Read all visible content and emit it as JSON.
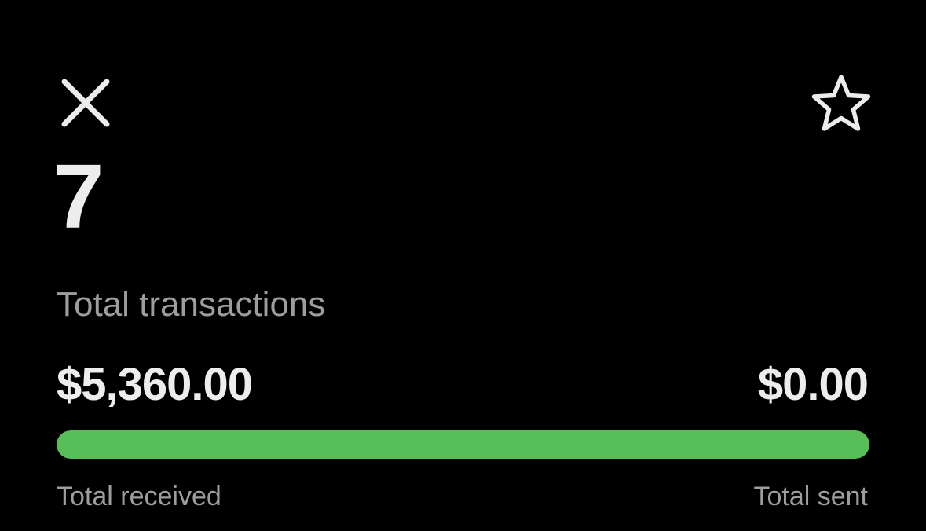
{
  "header": {
    "close_icon": "close-icon",
    "favorite_icon": "star-icon"
  },
  "summary": {
    "count": "7",
    "count_label": "Total transactions"
  },
  "totals": {
    "received_amount": "$5,360.00",
    "sent_amount": "$0.00",
    "received_label": "Total received",
    "sent_label": "Total sent",
    "received_share": 1.0
  },
  "colors": {
    "background": "#000000",
    "primary_text": "#ededed",
    "secondary_text": "#9d9d9d",
    "received_bar": "#58be57"
  }
}
